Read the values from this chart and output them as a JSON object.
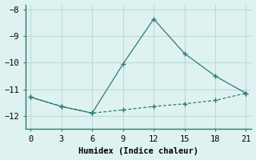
{
  "line1_x": [
    0,
    3,
    6,
    9,
    12,
    15,
    18,
    21
  ],
  "line1_y": [
    -11.3,
    -11.65,
    -11.9,
    -10.05,
    -8.35,
    -9.65,
    -10.5,
    -11.15
  ],
  "line2_x": [
    0,
    3,
    6,
    9,
    12,
    15,
    18,
    21
  ],
  "line2_y": [
    -11.3,
    -11.65,
    -11.9,
    -11.78,
    -11.65,
    -11.55,
    -11.42,
    -11.15
  ],
  "line_color": "#2e7d6e",
  "bg_color": "#dff2f2",
  "grid_color": "#c0d8d8",
  "xlabel": "Humidex (Indice chaleur)",
  "xlim": [
    -0.5,
    21.5
  ],
  "ylim": [
    -12.5,
    -7.8
  ],
  "xticks": [
    0,
    3,
    6,
    9,
    12,
    15,
    18,
    21
  ],
  "yticks": [
    -12,
    -11,
    -10,
    -9,
    -8
  ],
  "xlabel_fontsize": 7.5,
  "tick_fontsize": 7.5,
  "marker": "+",
  "markersize": 5
}
